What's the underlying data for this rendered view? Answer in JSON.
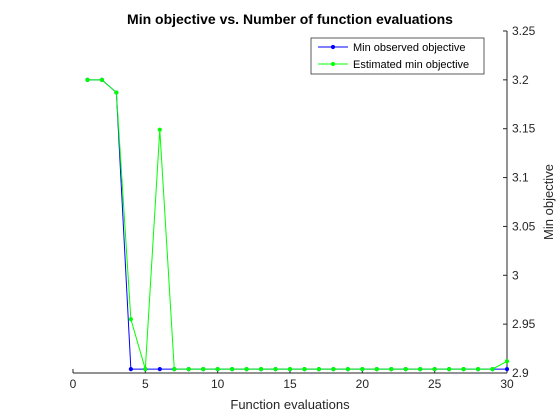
{
  "chart_data": {
    "type": "line",
    "title": "Min objective vs. Number of function evaluations",
    "xlabel": "Function evaluations",
    "ylabel": "Min objective",
    "xlim": [
      0,
      30
    ],
    "ylim": [
      2.9,
      3.25
    ],
    "x_ticks": [
      0,
      5,
      10,
      15,
      20,
      25,
      30
    ],
    "y_ticks": [
      2.9,
      2.95,
      3,
      3.05,
      3.1,
      3.15,
      3.2,
      3.25
    ],
    "y_axis_location": "right",
    "grid": false,
    "legend_position": "top-right",
    "series": [
      {
        "name": "Min observed objective",
        "color": "#0000ff",
        "marker": "dot",
        "x": [
          1,
          2,
          3,
          4,
          5,
          6,
          7,
          8,
          9,
          10,
          11,
          12,
          13,
          14,
          15,
          16,
          17,
          18,
          19,
          20,
          21,
          22,
          23,
          24,
          25,
          26,
          27,
          28,
          29,
          30
        ],
        "y": [
          3.2,
          3.2,
          3.187,
          2.904,
          2.904,
          2.904,
          2.904,
          2.904,
          2.904,
          2.904,
          2.904,
          2.904,
          2.904,
          2.904,
          2.904,
          2.904,
          2.904,
          2.904,
          2.904,
          2.904,
          2.904,
          2.904,
          2.904,
          2.904,
          2.904,
          2.904,
          2.904,
          2.904,
          2.904,
          2.904
        ]
      },
      {
        "name": "Estimated min objective",
        "color": "#00ff00",
        "marker": "dot",
        "x": [
          1,
          2,
          3,
          4,
          5,
          6,
          7,
          8,
          9,
          10,
          11,
          12,
          13,
          14,
          15,
          16,
          17,
          18,
          19,
          20,
          21,
          22,
          23,
          24,
          25,
          26,
          27,
          28,
          29,
          30
        ],
        "y": [
          3.2,
          3.2,
          3.187,
          2.955,
          2.904,
          3.149,
          2.904,
          2.904,
          2.904,
          2.904,
          2.904,
          2.904,
          2.904,
          2.904,
          2.904,
          2.904,
          2.904,
          2.904,
          2.904,
          2.904,
          2.904,
          2.904,
          2.904,
          2.904,
          2.904,
          2.904,
          2.904,
          2.904,
          2.904,
          2.912
        ]
      }
    ]
  }
}
